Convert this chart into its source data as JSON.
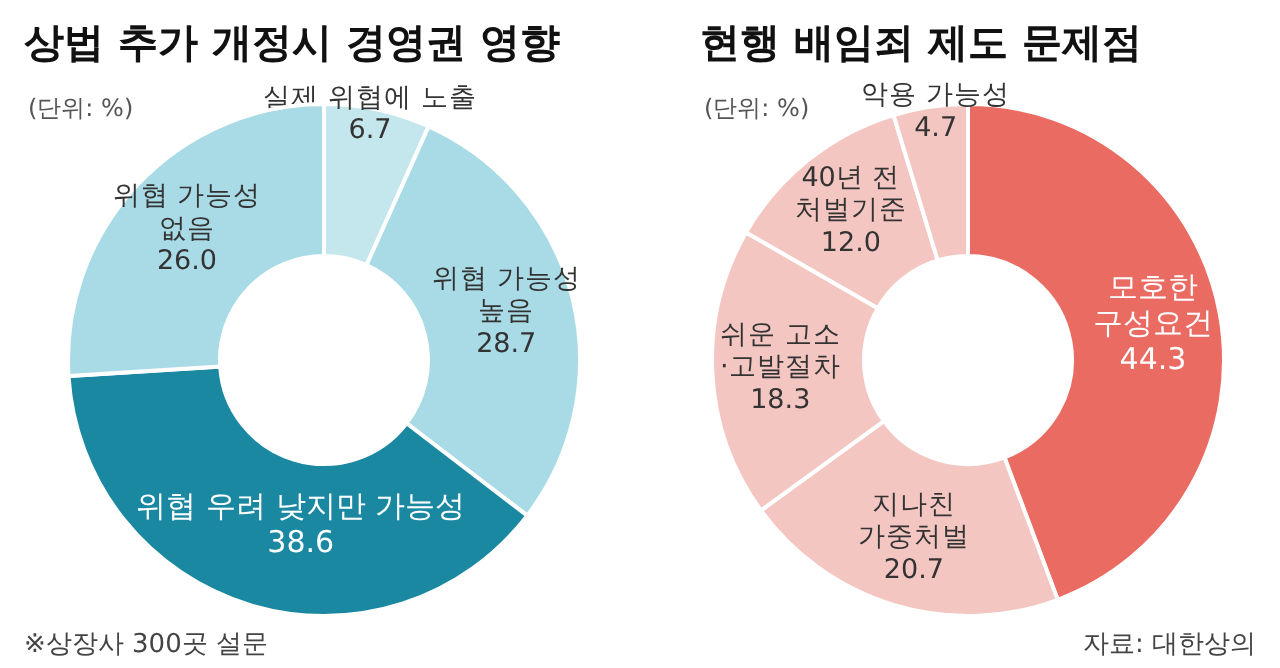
{
  "chart_data": [
    {
      "type": "donut",
      "title": "상법 추가 개정시 경영권 영향",
      "subtitle": "(단위: %)",
      "categories": [
        "실제 위협에 노출",
        "위협 가능성\n높음",
        "위협 우려 낮지만 가능성",
        "위협 가능성\n없음"
      ],
      "values": [
        6.7,
        28.7,
        38.6,
        26.0
      ],
      "value_labels": [
        "6.7",
        "28.7",
        "38.6",
        "26.0"
      ],
      "colors": [
        "#c4e6ed",
        "#a9dbe6",
        "#1b88a2",
        "#a9dbe6"
      ],
      "annotations": [
        "※상장사 300곳 설문"
      ],
      "legend": false
    },
    {
      "type": "donut",
      "title": "현행 배임죄 제도 문제점",
      "subtitle": "(단위: %)",
      "categories": [
        "모호한\n구성요건",
        "지나친\n가중처벌",
        "쉬운 고소\n·고발절차",
        "40년 전\n처벌기준",
        "악용 가능성"
      ],
      "values": [
        44.3,
        20.7,
        18.3,
        12.0,
        4.7
      ],
      "value_labels": [
        "44.3",
        "20.7",
        "18.3",
        "12.0",
        "4.7"
      ],
      "colors": [
        "#e96b62",
        "#f4c6c2",
        "#f4c6c2",
        "#f4c6c2",
        "#f4c6c2"
      ],
      "annotations": [
        "자료: 대한상의"
      ],
      "legend": false
    }
  ]
}
